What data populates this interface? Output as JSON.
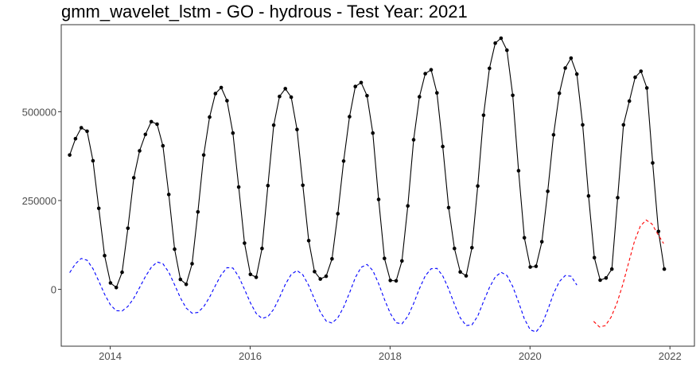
{
  "chart_data": {
    "type": "line",
    "title": "gmm_wavelet_lstm - GO - hydrous - Test Year: 2021",
    "xlabel": "",
    "ylabel": "",
    "xlim": [
      2013.3,
      2022.35
    ],
    "ylim": [
      -160000,
      745000
    ],
    "grid": false,
    "x_ticks": [
      2014,
      2016,
      2018,
      2020,
      2022
    ],
    "x_tick_labels": [
      "2014",
      "2016",
      "2018",
      "2020",
      "2022"
    ],
    "y_ticks": [
      0,
      250000,
      500000
    ],
    "y_tick_labels": [
      "0",
      "250000",
      "500000"
    ],
    "series": [
      {
        "name": "",
        "role": "observed",
        "style": "solid-with-points",
        "color": "#000000",
        "x_start": 2013.42,
        "x_step": 0.08333,
        "values": [
          378000,
          424000,
          455000,
          445000,
          362000,
          228000,
          95000,
          18000,
          5000,
          48000,
          172000,
          314000,
          390000,
          436000,
          472000,
          465000,
          404000,
          267000,
          113000,
          28000,
          14000,
          72000,
          218000,
          378000,
          485000,
          551000,
          568000,
          531000,
          440000,
          288000,
          130000,
          42000,
          34000,
          115000,
          292000,
          462000,
          543000,
          565000,
          541000,
          450000,
          293000,
          137000,
          50000,
          29000,
          37000,
          86000,
          213000,
          361000,
          486000,
          571000,
          582000,
          545000,
          440000,
          253000,
          87000,
          25000,
          24000,
          80000,
          235000,
          421000,
          542000,
          607000,
          618000,
          553000,
          402000,
          230000,
          115000,
          49000,
          38000,
          117000,
          291000,
          490000,
          622000,
          693000,
          707000,
          673000,
          546000,
          334000,
          145000,
          63000,
          65000,
          134000,
          276000,
          435000,
          552000,
          623000,
          651000,
          606000,
          463000,
          263000,
          89000,
          26000,
          32000,
          57000,
          258000,
          463000,
          530000,
          597000,
          614000,
          567000,
          356000,
          163000,
          57000
        ]
      },
      {
        "name": "",
        "role": "fitted",
        "style": "dashed",
        "color": "#0000ff",
        "x_start": 2013.42,
        "x_step": 0.08333,
        "values": [
          47000,
          72000,
          87000,
          82000,
          58000,
          23000,
          -14000,
          -44000,
          -60000,
          -61000,
          -48000,
          -25000,
          5000,
          36000,
          62000,
          77000,
          72000,
          48000,
          13000,
          -24000,
          -53000,
          -67000,
          -65000,
          -49000,
          -22000,
          11000,
          41000,
          61000,
          60000,
          36000,
          0,
          -38000,
          -68000,
          -82000,
          -77000,
          -56000,
          -23000,
          14000,
          42000,
          53000,
          41000,
          11000,
          -28000,
          -64000,
          -89000,
          -95000,
          -80000,
          -50000,
          -10000,
          33000,
          62000,
          70000,
          53000,
          16000,
          -28000,
          -68000,
          -94000,
          -97000,
          -76000,
          -40000,
          2000,
          38000,
          58000,
          59000,
          38000,
          1000,
          -42000,
          -80000,
          -102000,
          -100000,
          -75000,
          -34000,
          5000,
          35000,
          48000,
          39000,
          8000,
          -36000,
          -83000,
          -114000,
          -120000,
          -99000,
          -58000,
          -12000,
          22000,
          39000,
          37000,
          12000
        ]
      },
      {
        "name": "",
        "role": "forecast",
        "style": "dashed",
        "color": "#ff0000",
        "x_start": 2020.91,
        "x_step": 0.08333,
        "values": [
          -90000,
          -106000,
          -102000,
          -78000,
          -38000,
          14000,
          75000,
          135000,
          178000,
          195000,
          184000,
          155000,
          129000
        ]
      }
    ]
  }
}
